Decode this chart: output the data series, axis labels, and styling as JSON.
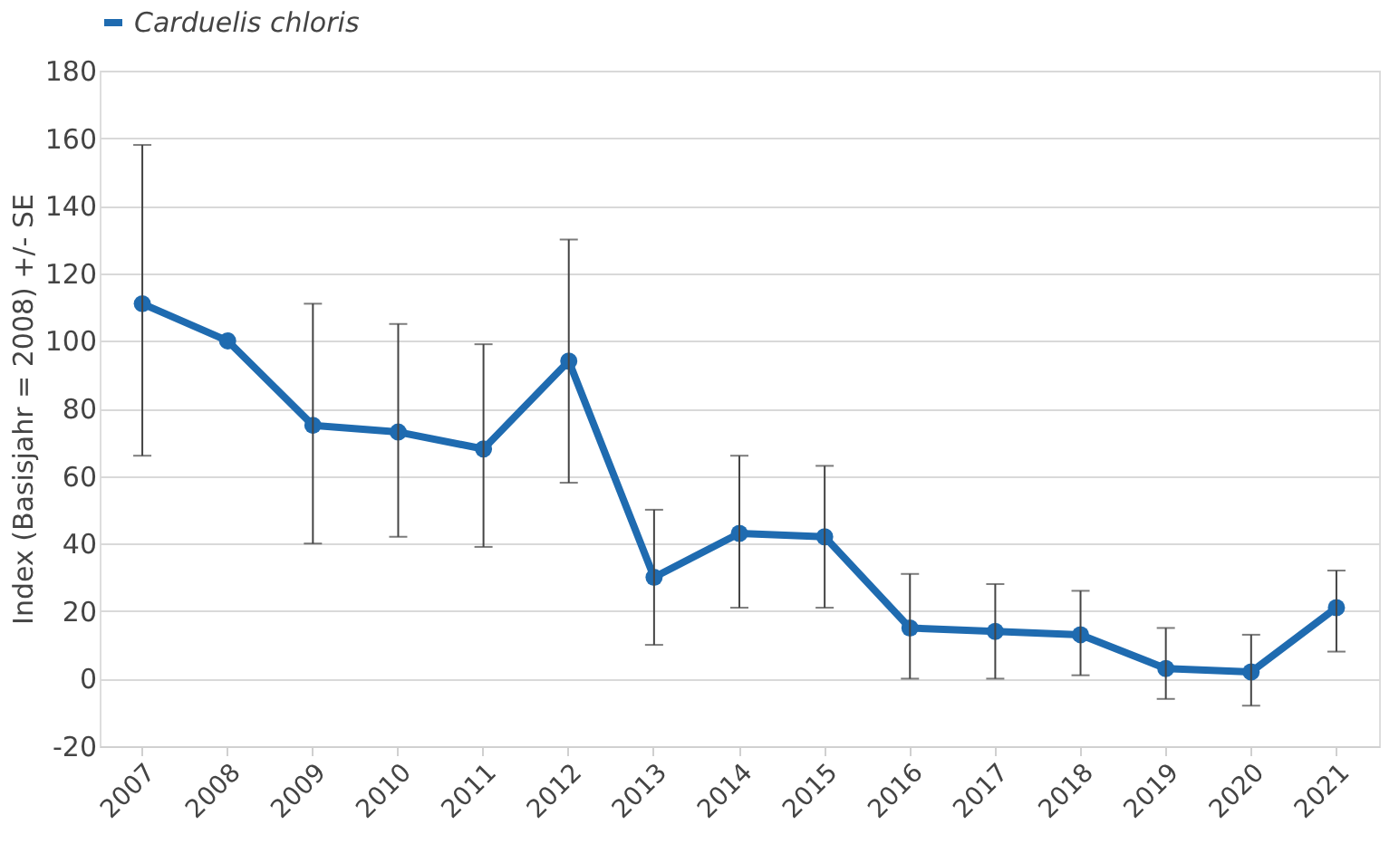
{
  "chart_data": {
    "type": "line",
    "ylabel": "Index  (Basisjahr  = 2008) +/- SE",
    "categories": [
      "2007",
      "2008",
      "2009",
      "2010",
      "2011",
      "2012",
      "2013",
      "2014",
      "2015",
      "2016",
      "2017",
      "2018",
      "2019",
      "2020",
      "2021"
    ],
    "series": [
      {
        "name": "Carduelis chloris",
        "color": "#1f6bb0",
        "values": [
          111,
          100,
          75,
          73,
          68,
          94,
          30,
          43,
          42,
          15,
          14,
          13,
          3,
          2,
          21
        ],
        "errors": [
          [
            66,
            158
          ],
          null,
          [
            40,
            111
          ],
          [
            42,
            105
          ],
          [
            39,
            99
          ],
          [
            58,
            130
          ],
          [
            10,
            50
          ],
          [
            21,
            66
          ],
          [
            21,
            63
          ],
          [
            0,
            31
          ],
          [
            0,
            28
          ],
          [
            1,
            26
          ],
          [
            -6,
            15
          ],
          [
            -8,
            13
          ],
          [
            8,
            32
          ]
        ]
      }
    ],
    "ylim": [
      -20,
      180
    ],
    "yticks": [
      -20,
      0,
      20,
      40,
      60,
      80,
      100,
      120,
      140,
      160,
      180
    ],
    "grid": "y",
    "legend": "top",
    "marker": "circle",
    "line_style": "solid"
  }
}
